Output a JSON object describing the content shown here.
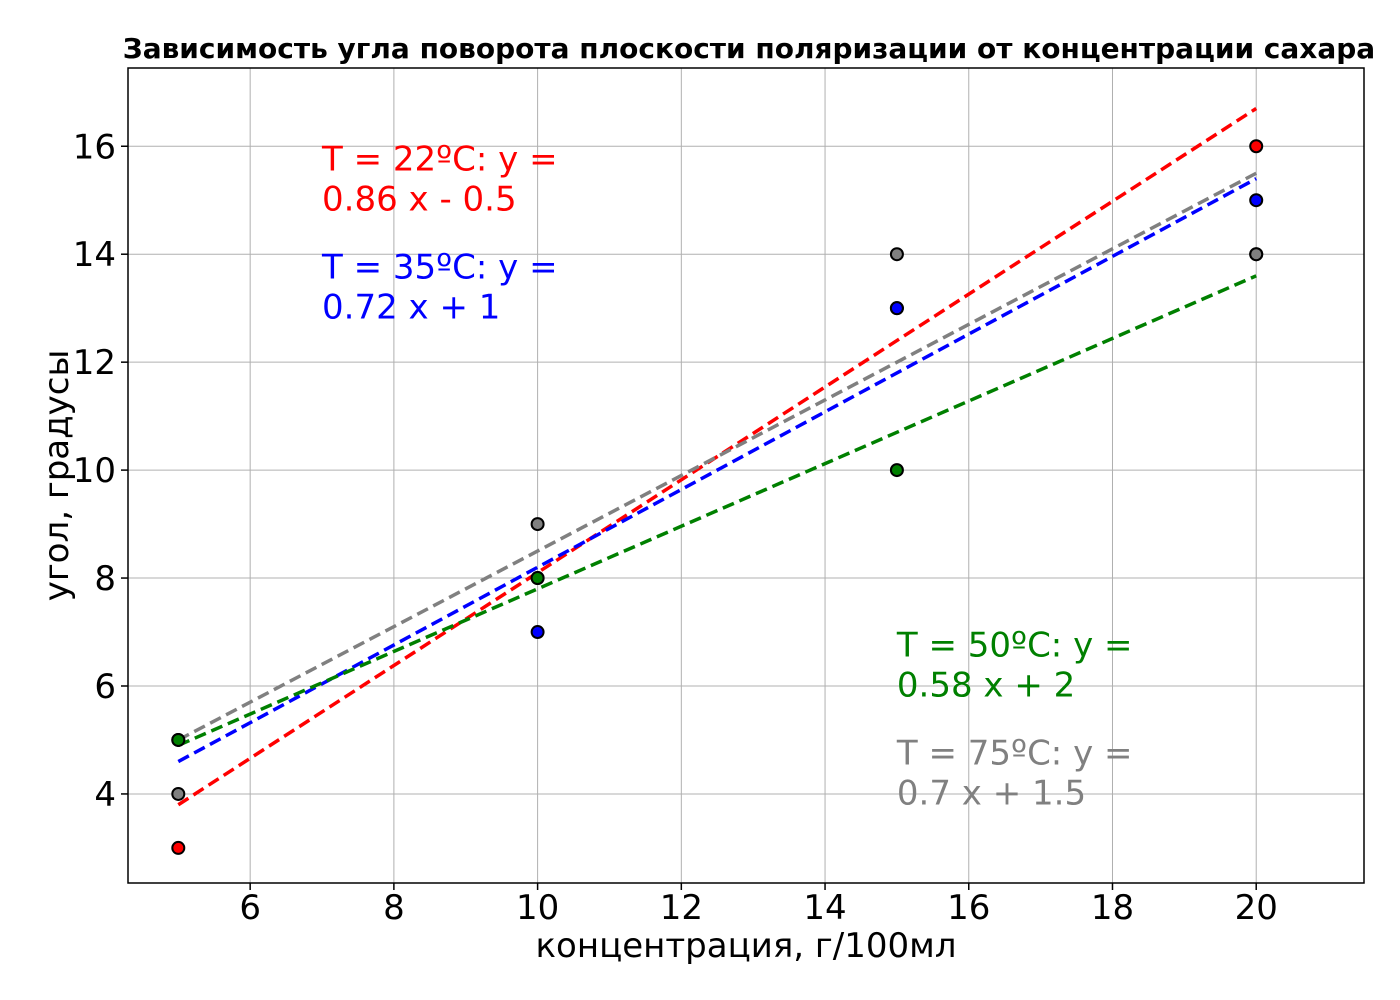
{
  "chart_data": {
    "type": "scatter",
    "title": "Зависимость угла поворота плоскости поляризации от концентрации сахара",
    "xlabel": "концентрация, г/100мл",
    "ylabel": "угол, градусы",
    "xlim": [
      4.3,
      21.5
    ],
    "ylim": [
      2.35,
      17.45
    ],
    "xticks": [
      6,
      8,
      10,
      12,
      14,
      16,
      18,
      20
    ],
    "yticks": [
      4,
      6,
      8,
      10,
      12,
      14,
      16
    ],
    "grid": true,
    "x": [
      5,
      10,
      15,
      20
    ],
    "series": [
      {
        "color": "#ff0000",
        "values": [
          3,
          8,
          13,
          16
        ],
        "fit": {
          "slope": 0.86,
          "intercept": -0.5
        }
      },
      {
        "color": "#0000ff",
        "values": [
          5,
          7,
          13,
          15
        ],
        "fit": {
          "slope": 0.72,
          "intercept": 1.0
        }
      },
      {
        "color": "#008000",
        "values": [
          5,
          8,
          10,
          14
        ],
        "fit": {
          "slope": 0.58,
          "intercept": 2.0
        }
      },
      {
        "color": "#808080",
        "values": [
          4,
          9,
          14,
          14
        ],
        "fit": {
          "slope": 0.7,
          "intercept": 1.5
        }
      }
    ],
    "annotations": [
      {
        "lines": [
          "T = 22ºC: y =",
          "0.86 x - 0.5"
        ],
        "color": "#ff0000",
        "x": 7,
        "y": 15.55
      },
      {
        "lines": [
          "T = 35ºC: y =",
          "0.72 x + 1"
        ],
        "color": "#0000ff",
        "x": 7,
        "y": 13.55
      },
      {
        "lines": [
          "T = 50ºC: y =",
          "0.58 x + 2"
        ],
        "color": "#008000",
        "x": 15,
        "y": 6.55
      },
      {
        "lines": [
          "T = 75ºC: y =",
          "0.7 x + 1.5"
        ],
        "color": "#808080",
        "x": 15,
        "y": 4.55
      }
    ]
  }
}
